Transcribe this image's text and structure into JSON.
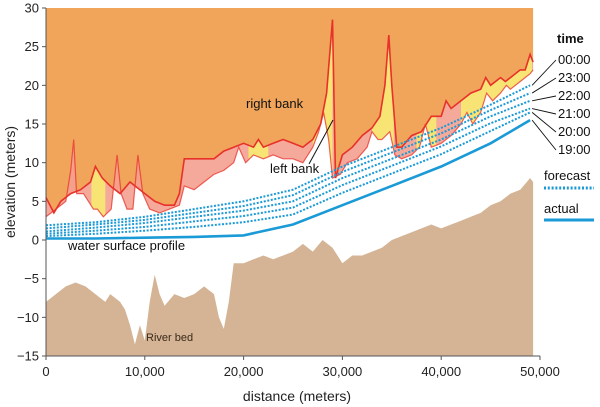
{
  "chart_data": {
    "type": "area",
    "xlabel": "distance (meters)",
    "ylabel": "elevation (meters)",
    "xlim": [
      0,
      50000
    ],
    "ylim": [
      -15,
      30
    ],
    "x_ticks": [
      0,
      10000,
      20000,
      30000,
      40000,
      50000
    ],
    "x_tick_labels": [
      "0",
      "10,000",
      "20,000",
      "30,000",
      "40,000",
      "50,000"
    ],
    "y_ticks": [
      -15,
      -10,
      -5,
      0,
      5,
      10,
      15,
      20,
      25,
      30
    ],
    "y_tick_labels": [
      "−15",
      "−10",
      "−5",
      "0",
      "5",
      "10",
      "15",
      "20",
      "25",
      "30"
    ],
    "grid": false,
    "annotations": {
      "right_bank": "right bank",
      "left_bank": "left bank",
      "water_surface_profile": "water surface profile",
      "river_bed": "River bed"
    },
    "colors": {
      "right_bank_fill": "#f0a55a",
      "left_bank_fill": "#f4a090",
      "left_bank_exposed": "#f7ee6e",
      "bank_line": "#e8312b",
      "river_bed_fill": "#d4b495",
      "water_line": "#1a9ad6"
    },
    "right_bank": [
      [
        0,
        5.5
      ],
      [
        800,
        3.5
      ],
      [
        1500,
        5
      ],
      [
        2500,
        6
      ],
      [
        3500,
        6.5
      ],
      [
        4500,
        7.5
      ],
      [
        5000,
        9.5
      ],
      [
        5700,
        8
      ],
      [
        6500,
        7
      ],
      [
        7500,
        6
      ],
      [
        8500,
        7.5
      ],
      [
        9000,
        7
      ],
      [
        10000,
        6
      ],
      [
        11000,
        5
      ],
      [
        12000,
        4.5
      ],
      [
        13000,
        4.5
      ],
      [
        13500,
        6
      ],
      [
        14000,
        10.5
      ],
      [
        15000,
        10.5
      ],
      [
        16000,
        10.5
      ],
      [
        17000,
        10.5
      ],
      [
        18000,
        11.5
      ],
      [
        19000,
        12
      ],
      [
        20000,
        12.5
      ],
      [
        21000,
        12
      ],
      [
        21500,
        13
      ],
      [
        22000,
        12
      ],
      [
        23000,
        12.5
      ],
      [
        24000,
        13
      ],
      [
        25000,
        12.5
      ],
      [
        26000,
        12
      ],
      [
        26500,
        12.5
      ],
      [
        27000,
        13
      ],
      [
        27800,
        15
      ],
      [
        28400,
        19
      ],
      [
        29000,
        28.5
      ],
      [
        29300,
        8
      ],
      [
        30000,
        11
      ],
      [
        31000,
        12
      ],
      [
        32000,
        13.5
      ],
      [
        33000,
        14.5
      ],
      [
        33800,
        16
      ],
      [
        34300,
        20
      ],
      [
        34700,
        26.5
      ],
      [
        35000,
        20
      ],
      [
        35500,
        12
      ],
      [
        36000,
        12
      ],
      [
        37000,
        13.5
      ],
      [
        38000,
        14
      ],
      [
        39000,
        16
      ],
      [
        40000,
        16
      ],
      [
        40500,
        18
      ],
      [
        41000,
        17
      ],
      [
        42000,
        18
      ],
      [
        43000,
        19
      ],
      [
        44000,
        19.5
      ],
      [
        44500,
        21
      ],
      [
        45000,
        20
      ],
      [
        46000,
        21
      ],
      [
        46500,
        20.5
      ],
      [
        47000,
        21
      ],
      [
        48000,
        22
      ],
      [
        48500,
        22
      ],
      [
        49000,
        24
      ],
      [
        49300,
        23
      ]
    ],
    "left_bank": [
      [
        0,
        3
      ],
      [
        1000,
        4
      ],
      [
        2000,
        5
      ],
      [
        2500,
        9
      ],
      [
        2800,
        13
      ],
      [
        3100,
        6
      ],
      [
        3800,
        6
      ],
      [
        4800,
        4
      ],
      [
        5200,
        4
      ],
      [
        5800,
        3
      ],
      [
        6600,
        4
      ],
      [
        7200,
        11
      ],
      [
        7600,
        6
      ],
      [
        8200,
        4
      ],
      [
        8800,
        4
      ],
      [
        9300,
        11
      ],
      [
        9800,
        6
      ],
      [
        10500,
        4
      ],
      [
        11500,
        3.5
      ],
      [
        12500,
        4
      ],
      [
        13500,
        4.5
      ],
      [
        14000,
        7
      ],
      [
        15000,
        6.5
      ],
      [
        16000,
        7.5
      ],
      [
        17000,
        8.5
      ],
      [
        18000,
        9
      ],
      [
        19000,
        10
      ],
      [
        19500,
        12
      ],
      [
        20200,
        10
      ],
      [
        21000,
        11
      ],
      [
        22000,
        10.5
      ],
      [
        23000,
        11
      ],
      [
        24000,
        10.5
      ],
      [
        25000,
        10.5
      ],
      [
        26000,
        10
      ],
      [
        27000,
        12
      ],
      [
        27600,
        14
      ],
      [
        28100,
        16.5
      ],
      [
        28600,
        13
      ],
      [
        29000,
        8
      ],
      [
        29800,
        8.5
      ],
      [
        30500,
        10
      ],
      [
        31500,
        10.5
      ],
      [
        32500,
        12
      ],
      [
        33000,
        14
      ],
      [
        33600,
        13
      ],
      [
        34000,
        13
      ],
      [
        34800,
        14
      ],
      [
        35300,
        11
      ],
      [
        36000,
        10.5
      ],
      [
        37000,
        11
      ],
      [
        37800,
        12
      ],
      [
        38400,
        15
      ],
      [
        39000,
        12
      ],
      [
        40000,
        12.5
      ],
      [
        41000,
        13.5
      ],
      [
        42000,
        15
      ],
      [
        42600,
        16.5
      ],
      [
        43200,
        15
      ],
      [
        44000,
        16.5
      ],
      [
        44600,
        19
      ],
      [
        45200,
        18
      ],
      [
        46000,
        19
      ],
      [
        46600,
        20
      ],
      [
        47000,
        19.5
      ],
      [
        48000,
        20.5
      ],
      [
        49000,
        21.5
      ],
      [
        49300,
        22
      ]
    ],
    "river_bed": [
      [
        0,
        -8
      ],
      [
        1000,
        -7
      ],
      [
        2000,
        -6
      ],
      [
        3000,
        -5.5
      ],
      [
        4000,
        -6
      ],
      [
        5000,
        -7
      ],
      [
        6000,
        -8
      ],
      [
        6500,
        -7
      ],
      [
        7000,
        -7.5
      ],
      [
        7500,
        -8
      ],
      [
        8000,
        -9
      ],
      [
        8500,
        -11
      ],
      [
        9000,
        -13.5
      ],
      [
        9500,
        -11
      ],
      [
        10000,
        -13
      ],
      [
        10500,
        -8
      ],
      [
        11000,
        -4.5
      ],
      [
        11500,
        -7
      ],
      [
        12000,
        -8.5
      ],
      [
        13000,
        -7
      ],
      [
        14000,
        -7.5
      ],
      [
        15000,
        -7
      ],
      [
        16000,
        -6
      ],
      [
        17000,
        -7
      ],
      [
        17500,
        -10
      ],
      [
        18000,
        -11.5
      ],
      [
        18500,
        -8
      ],
      [
        19000,
        -3
      ],
      [
        20000,
        -3
      ],
      [
        21000,
        -2.5
      ],
      [
        22000,
        -2
      ],
      [
        23000,
        -2.5
      ],
      [
        24000,
        -2
      ],
      [
        25000,
        -1.5
      ],
      [
        26000,
        -0.5
      ],
      [
        27000,
        -1.5
      ],
      [
        28000,
        0
      ],
      [
        29000,
        -1
      ],
      [
        30000,
        -3
      ],
      [
        31000,
        -2
      ],
      [
        32000,
        -2
      ],
      [
        33000,
        -1.5
      ],
      [
        34000,
        -1
      ],
      [
        35000,
        0
      ],
      [
        36000,
        0.5
      ],
      [
        37000,
        1
      ],
      [
        38000,
        1.5
      ],
      [
        39000,
        2
      ],
      [
        40000,
        1.5
      ],
      [
        41000,
        2
      ],
      [
        42000,
        2.5
      ],
      [
        43000,
        3
      ],
      [
        44000,
        3.5
      ],
      [
        45000,
        4.5
      ],
      [
        46000,
        5
      ],
      [
        47000,
        6
      ],
      [
        48000,
        6.5
      ],
      [
        49000,
        8
      ],
      [
        49300,
        7.5
      ]
    ],
    "series": [
      {
        "name": "00:00",
        "style": "forecast",
        "values": [
          [
            0,
            1.9
          ],
          [
            5000,
            2.3
          ],
          [
            10000,
            3
          ],
          [
            15000,
            4
          ],
          [
            20000,
            5
          ],
          [
            25000,
            6.5
          ],
          [
            30000,
            9.5
          ],
          [
            35000,
            12
          ],
          [
            40000,
            14.5
          ],
          [
            45000,
            17.5
          ],
          [
            49000,
            20
          ]
        ]
      },
      {
        "name": "23:00",
        "style": "forecast",
        "values": [
          [
            0,
            1.5
          ],
          [
            5000,
            2
          ],
          [
            10000,
            2.6
          ],
          [
            15000,
            3.5
          ],
          [
            20000,
            4.4
          ],
          [
            25000,
            5.8
          ],
          [
            30000,
            8.8
          ],
          [
            35000,
            11.3
          ],
          [
            40000,
            13.8
          ],
          [
            45000,
            16.8
          ],
          [
            49000,
            19
          ]
        ]
      },
      {
        "name": "22:00",
        "style": "forecast",
        "values": [
          [
            0,
            1.1
          ],
          [
            5000,
            1.6
          ],
          [
            10000,
            2.2
          ],
          [
            15000,
            3
          ],
          [
            20000,
            3.8
          ],
          [
            25000,
            5
          ],
          [
            30000,
            8
          ],
          [
            35000,
            10.5
          ],
          [
            40000,
            13
          ],
          [
            45000,
            16
          ],
          [
            49000,
            18
          ]
        ]
      },
      {
        "name": "21:00",
        "style": "forecast",
        "values": [
          [
            0,
            0.8
          ],
          [
            5000,
            1.2
          ],
          [
            10000,
            1.7
          ],
          [
            15000,
            2.4
          ],
          [
            20000,
            3.1
          ],
          [
            25000,
            4.2
          ],
          [
            30000,
            7.1
          ],
          [
            35000,
            9.6
          ],
          [
            40000,
            12.1
          ],
          [
            45000,
            15.1
          ],
          [
            49000,
            17
          ]
        ]
      },
      {
        "name": "20:00",
        "style": "forecast",
        "values": [
          [
            0,
            0.5
          ],
          [
            5000,
            0.8
          ],
          [
            10000,
            1.2
          ],
          [
            15000,
            1.7
          ],
          [
            20000,
            2.3
          ],
          [
            25000,
            3.3
          ],
          [
            30000,
            6.1
          ],
          [
            35000,
            8.6
          ],
          [
            40000,
            11.1
          ],
          [
            45000,
            14.1
          ],
          [
            49000,
            16.5
          ]
        ]
      },
      {
        "name": "19:00",
        "style": "actual",
        "values": [
          [
            0,
            0.2
          ],
          [
            5000,
            0.2
          ],
          [
            10000,
            0.3
          ],
          [
            15000,
            0.4
          ],
          [
            20000,
            0.6
          ],
          [
            25000,
            2
          ],
          [
            30000,
            4.5
          ],
          [
            35000,
            7
          ],
          [
            40000,
            9.5
          ],
          [
            45000,
            12.5
          ],
          [
            49000,
            15.5
          ]
        ]
      }
    ],
    "legend": {
      "title": "time",
      "entries": [
        "00:00",
        "23:00",
        "22:00",
        "21:00",
        "20:00",
        "19:00"
      ],
      "forecast_label": "forecast",
      "actual_label": "actual",
      "placement": "right"
    }
  }
}
